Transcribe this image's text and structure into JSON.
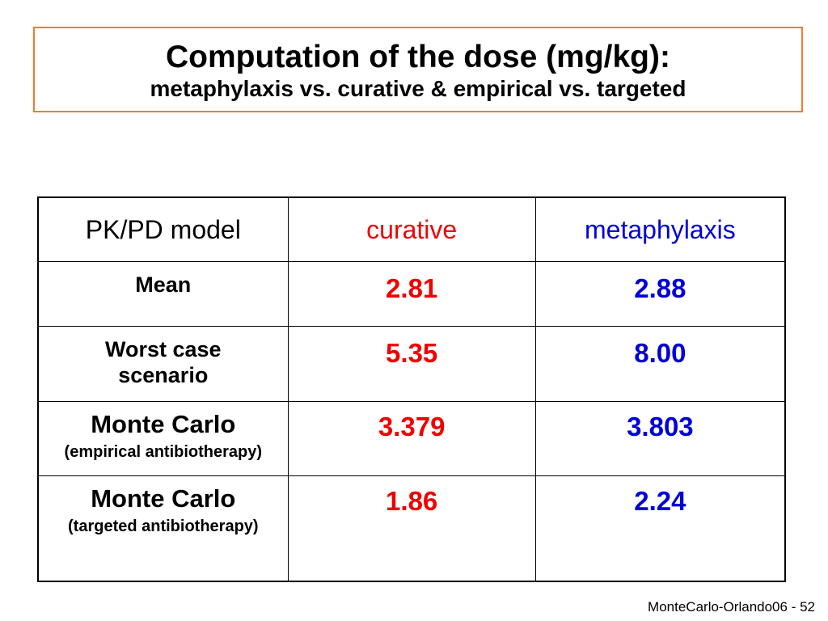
{
  "title": {
    "main": "Computation of the dose (mg/kg):",
    "sub": "metaphylaxis vs. curative & empirical vs. targeted"
  },
  "table": {
    "headers": [
      "PK/PD model",
      "curative",
      "metaphylaxis"
    ],
    "rows": [
      {
        "label": "Mean",
        "sublabel": "",
        "curative": "2.81",
        "metaphylaxis": "2.88"
      },
      {
        "label": "Worst case scenario",
        "sublabel": "",
        "curative": "5.35",
        "metaphylaxis": "8.00"
      },
      {
        "label": "Monte Carlo",
        "sublabel": "(empirical antibiotherapy)",
        "curative": "3.379",
        "metaphylaxis": "3.803"
      },
      {
        "label": "Monte Carlo",
        "sublabel": "(targeted antibiotherapy)",
        "curative": "1.86",
        "metaphylaxis": "2.24"
      }
    ]
  },
  "footer": "MonteCarlo-Orlando06 - 52",
  "colors": {
    "title_border": "#f07c2c",
    "curative": "#f00000",
    "metaphylaxis": "#0000d8"
  }
}
